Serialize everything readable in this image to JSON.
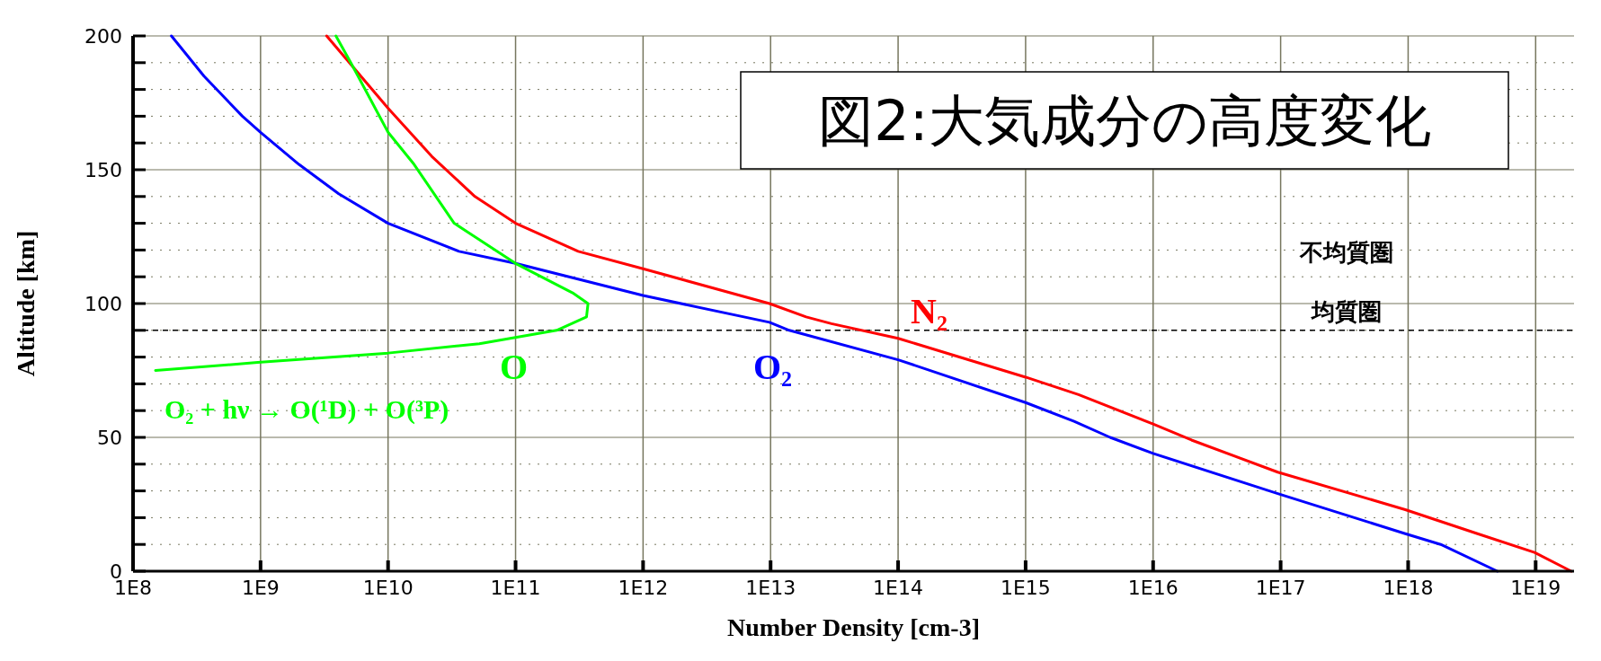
{
  "chart_data": {
    "type": "line",
    "title": "図2:大気成分の高度変化",
    "xlabel": "Number Density    [cm-3]",
    "ylabel": "Altitude  [km]",
    "log": "x",
    "grid": true,
    "legend": false,
    "marker": "none",
    "line_style": "solid",
    "xlim": [
      100000000.0,
      2e+19
    ],
    "xticks": [
      {
        "value": 100000000.0,
        "label": "1E8"
      },
      {
        "value": 1000000000.0,
        "label": "1E9"
      },
      {
        "value": 10000000000.0,
        "label": "1E10"
      },
      {
        "value": 100000000000.0,
        "label": "1E11"
      },
      {
        "value": 1000000000000.0,
        "label": "1E12"
      },
      {
        "value": 10000000000000.0,
        "label": "1E13"
      },
      {
        "value": 100000000000000.0,
        "label": "1E14"
      },
      {
        "value": 1000000000000000.0,
        "label": "1E15"
      },
      {
        "value": 1e+16,
        "label": "1E16"
      },
      {
        "value": 1e+17,
        "label": "1E17"
      },
      {
        "value": 1e+18,
        "label": "1E18"
      },
      {
        "value": 1e+19,
        "label": "1E19"
      }
    ],
    "ylim": [
      0,
      200
    ],
    "yticks": [
      0,
      {
        "value": 10,
        "label": null
      },
      {
        "value": 20,
        "label": null
      },
      {
        "value": 30,
        "label": null
      },
      {
        "value": 40,
        "label": null
      },
      50,
      {
        "value": 60,
        "label": null
      },
      {
        "value": 70,
        "label": null
      },
      {
        "value": 80,
        "label": null
      },
      {
        "value": 90,
        "label": null
      },
      100,
      {
        "value": 110,
        "label": null
      },
      {
        "value": 120,
        "label": null
      },
      {
        "value": 130,
        "label": null
      },
      {
        "value": 140,
        "label": null
      },
      150,
      {
        "value": 160,
        "label": null
      },
      {
        "value": 170,
        "label": null
      },
      {
        "value": 180,
        "label": null
      },
      {
        "value": 190,
        "label": null
      },
      200
    ],
    "series": [
      {
        "name": "N₂",
        "color": "#ff0000",
        "x": [
          3300000000.0,
          10000000000.0,
          22000000000.0,
          48000000000.0,
          100000000000.0,
          310000000000.0,
          1000000000000.0,
          9800000000000.0,
          19000000000000.0,
          30000000000000.0,
          100000000000000.0,
          1000000000000000.0,
          2600000000000000.0,
          1e+16,
          2e+16,
          9.5e+16,
          9.5e+17,
          3.5e+18,
          9.8e+18,
          1.9e+19
        ],
        "values": [
          200,
          173,
          155,
          140,
          130,
          119.5,
          113,
          100,
          95,
          92.5,
          87,
          72.5,
          66,
          55,
          49,
          37,
          23,
          14,
          7,
          0
        ]
      },
      {
        "name": "O₂",
        "color": "#0000ff",
        "x": [
          200000000.0,
          360000000.0,
          720000000.0,
          1000000000.0,
          2000000000.0,
          4100000000.0,
          10000000000.0,
          36000000000.0,
          100000000000.0,
          1000000000000.0,
          9800000000000.0,
          14000000000000.0,
          100000000000000.0,
          1000000000000000.0,
          2400000000000000.0,
          4600000000000000.0,
          1e+16,
          9.5e+16,
          9.5e+17,
          1.8e+18,
          5e+18
        ],
        "values": [
          200,
          185,
          170,
          164,
          152,
          141,
          130,
          119.5,
          115,
          103,
          93,
          90,
          79,
          63,
          56,
          50,
          44,
          29,
          14,
          10,
          0
        ]
      },
      {
        "name": "O",
        "color": "#00ff00",
        "x": [
          3900000000.0,
          5100000000.0,
          10000000000.0,
          16000000000.0,
          33000000000.0,
          100000000000.0,
          280000000000.0,
          370000000000.0,
          360000000000.0,
          210000000000.0,
          52000000000.0,
          10000000000.0,
          950000000.0,
          150000000.0
        ],
        "values": [
          200,
          190,
          164,
          152,
          130,
          115,
          104,
          100,
          95,
          90,
          85,
          81.5,
          78,
          75
        ]
      }
    ],
    "ref_lines": [
      {
        "axis": "y",
        "value": 90,
        "label": null,
        "color": "#000000",
        "line_style": "dashed"
      }
    ],
    "annotations": [
      "不均質圏",
      "均質圏",
      "O₂ + hν → O(¹D) + O(³P)"
    ]
  }
}
